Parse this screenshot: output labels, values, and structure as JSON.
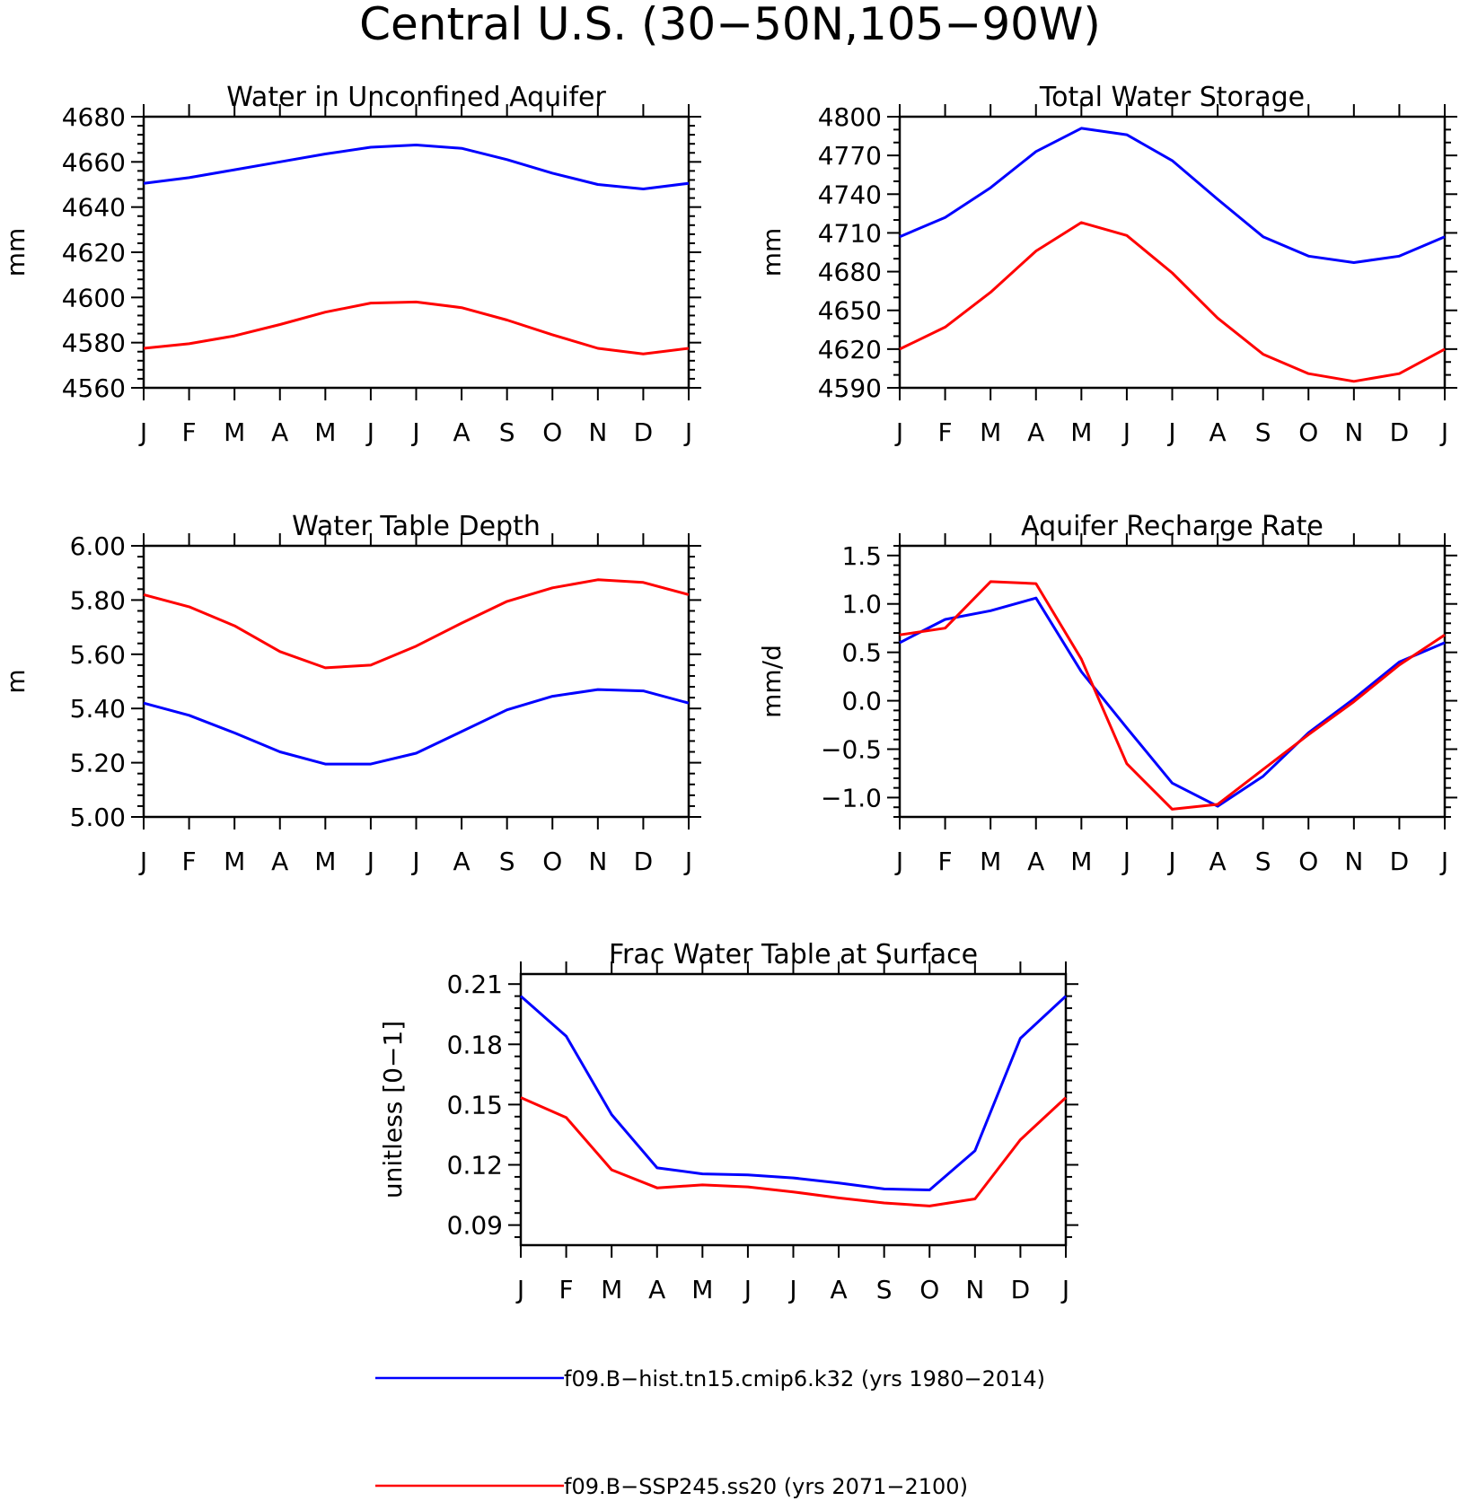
{
  "figure": {
    "title": "Central U.S. (30−50N,105−90W)"
  },
  "colors": {
    "hist": "#0000ff",
    "ssp": "#ff0000",
    "frame": "#000000"
  },
  "legend": [
    {
      "label": "f09.B−hist.tn15.cmip6.k32 (yrs 1980−2014)",
      "color": "#0000ff"
    },
    {
      "label": "f09.B−SSP245.ss20 (yrs 2071−2100)",
      "color": "#ff0000"
    }
  ],
  "chart_data": [
    {
      "type": "line",
      "title": "Water in Unconfined Aquifer",
      "ylabel": "mm",
      "xlabel": "",
      "categories": [
        "J",
        "F",
        "M",
        "A",
        "M",
        "J",
        "J",
        "A",
        "S",
        "O",
        "N",
        "D",
        "J"
      ],
      "ylim": [
        4560,
        4680
      ],
      "yticks": [
        4560,
        4580,
        4600,
        4620,
        4640,
        4660,
        4680
      ],
      "yminor_per_major": 4,
      "ydecimals": 0,
      "series": [
        {
          "color": "#0000ff",
          "values": [
            4650.5,
            4653,
            4656.5,
            4660,
            4663.5,
            4666.5,
            4667.5,
            4666,
            4661,
            4655,
            4650,
            4648,
            4650.5
          ]
        },
        {
          "color": "#ff0000",
          "values": [
            4577.5,
            4579.5,
            4583,
            4588,
            4593.5,
            4597.5,
            4598,
            4595.5,
            4590,
            4583.5,
            4577.5,
            4575,
            4577.5
          ]
        }
      ]
    },
    {
      "type": "line",
      "title": "Total Water Storage",
      "ylabel": "mm",
      "xlabel": "",
      "categories": [
        "J",
        "F",
        "M",
        "A",
        "M",
        "J",
        "J",
        "A",
        "S",
        "O",
        "N",
        "D",
        "J"
      ],
      "ylim": [
        4590,
        4800
      ],
      "yticks": [
        4590,
        4620,
        4650,
        4680,
        4710,
        4740,
        4770,
        4800
      ],
      "yminor_per_major": 2,
      "ydecimals": 0,
      "series": [
        {
          "color": "#0000ff",
          "values": [
            4707,
            4722,
            4745,
            4773,
            4791,
            4786,
            4766,
            4736,
            4707,
            4692,
            4687,
            4692,
            4707
          ]
        },
        {
          "color": "#ff0000",
          "values": [
            4620,
            4637,
            4664,
            4696,
            4718,
            4708,
            4679,
            4644,
            4616,
            4601,
            4595,
            4601,
            4620
          ]
        }
      ]
    },
    {
      "type": "line",
      "title": "Water Table Depth",
      "ylabel": "m",
      "xlabel": "",
      "categories": [
        "J",
        "F",
        "M",
        "A",
        "M",
        "J",
        "J",
        "A",
        "S",
        "O",
        "N",
        "D",
        "J"
      ],
      "ylim": [
        5.0,
        6.0
      ],
      "yticks": [
        5.0,
        5.2,
        5.4,
        5.6,
        5.8,
        6.0
      ],
      "yminor_per_major": 4,
      "ydecimals": 2,
      "series": [
        {
          "color": "#0000ff",
          "values": [
            5.42,
            5.375,
            5.31,
            5.24,
            5.195,
            5.195,
            5.235,
            5.315,
            5.395,
            5.445,
            5.47,
            5.465,
            5.42
          ]
        },
        {
          "color": "#ff0000",
          "values": [
            5.82,
            5.775,
            5.705,
            5.61,
            5.55,
            5.56,
            5.63,
            5.715,
            5.795,
            5.845,
            5.875,
            5.865,
            5.82
          ]
        }
      ]
    },
    {
      "type": "line",
      "title": "Aquifer Recharge Rate",
      "ylabel": "mm/d",
      "xlabel": "",
      "categories": [
        "J",
        "F",
        "M",
        "A",
        "M",
        "J",
        "J",
        "A",
        "S",
        "O",
        "N",
        "D",
        "J"
      ],
      "ylim": [
        -1.2,
        1.6
      ],
      "yticks": [
        -1.0,
        -0.5,
        0.0,
        0.5,
        1.0,
        1.5
      ],
      "yminor_per_major": 4,
      "ydecimals": 1,
      "series": [
        {
          "color": "#0000ff",
          "values": [
            0.6,
            0.84,
            0.93,
            1.06,
            0.3,
            -0.28,
            -0.85,
            -1.09,
            -0.78,
            -0.33,
            0.02,
            0.4,
            0.6
          ]
        },
        {
          "color": "#ff0000",
          "values": [
            0.68,
            0.75,
            1.23,
            1.21,
            0.43,
            -0.65,
            -1.12,
            -1.07,
            -0.71,
            -0.35,
            -0.01,
            0.37,
            0.68
          ]
        }
      ]
    },
    {
      "type": "line",
      "title": "Frac Water Table at Surface",
      "ylabel": "unitless [0−1]",
      "xlabel": "",
      "categories": [
        "J",
        "F",
        "M",
        "A",
        "M",
        "J",
        "J",
        "A",
        "S",
        "O",
        "N",
        "D",
        "J"
      ],
      "ylim": [
        0.08,
        0.215
      ],
      "yticks": [
        0.09,
        0.12,
        0.15,
        0.18,
        0.21
      ],
      "yminor_per_major": 4,
      "ydecimals": 2,
      "series": [
        {
          "color": "#0000ff",
          "values": [
            0.204,
            0.184,
            0.145,
            0.1185,
            0.1155,
            0.115,
            0.1135,
            0.111,
            0.108,
            0.1075,
            0.127,
            0.183,
            0.204
          ]
        },
        {
          "color": "#ff0000",
          "values": [
            0.1535,
            0.1435,
            0.1175,
            0.1085,
            0.11,
            0.109,
            0.1065,
            0.1035,
            0.101,
            0.0995,
            0.103,
            0.1325,
            0.1535
          ]
        }
      ]
    }
  ]
}
